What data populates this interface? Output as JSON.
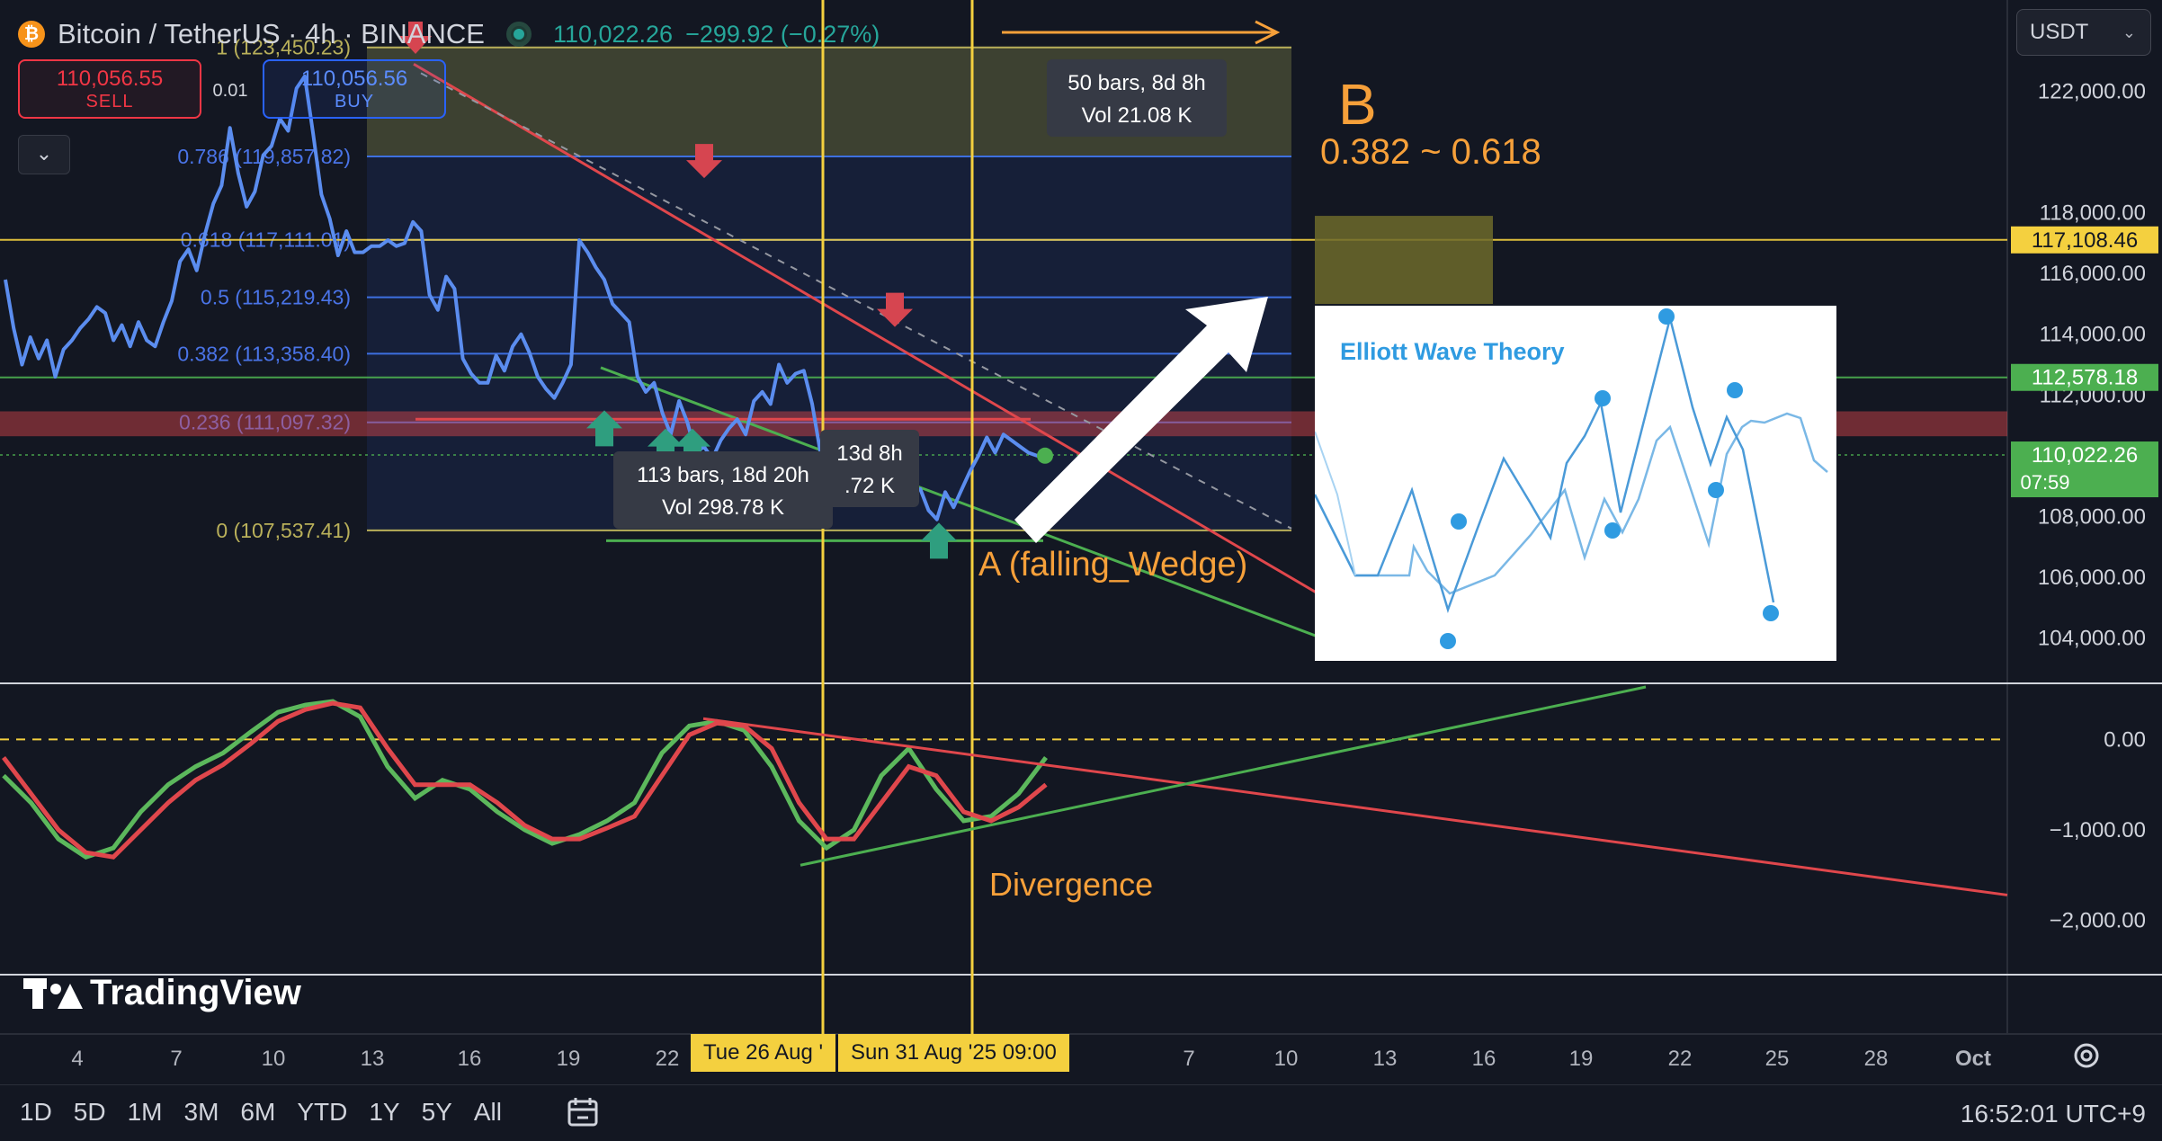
{
  "header": {
    "symbol": "Bitcoin / TetherUS · 4h · BINANCE",
    "coin_glyph": "₿",
    "last_price": "110,022.26",
    "change": "−299.92 (−0.27%)",
    "currency_select": "USDT",
    "currency_chevron": "⌄",
    "collapse_glyph": "⌄"
  },
  "trade": {
    "sell_price": "110,056.55",
    "sell_label": "SELL",
    "spread": "0.01",
    "buy_price": "110,056.56",
    "buy_label": "BUY"
  },
  "brand": "TradingView",
  "ranges": [
    "1D",
    "5D",
    "1M",
    "3M",
    "6M",
    "YTD",
    "1Y",
    "5Y",
    "All"
  ],
  "clock": "16:52:01 UTC+9",
  "colors": {
    "up": "#26a69a",
    "down": "#f23645",
    "price_line": "#5b8def",
    "fib": "#3d6fe0",
    "fib_label": "#4a74e8",
    "annotation": "#f6a03a",
    "wedge": "#4caf50",
    "trend": "#e0474c",
    "zone": "#6d6a2a",
    "cursor": "#f4d03f"
  },
  "icons": {
    "calendar": "calendar-range-icon",
    "settings": "gear-icon",
    "down_marker": "down-arrow-marker-icon",
    "up_marker": "up-arrow-marker-icon"
  },
  "chart_data": [
    {
      "type": "line",
      "name": "price-pane",
      "y_axis": {
        "ticks": [
          104000,
          106000,
          108000,
          110000,
          112000,
          114000,
          116000,
          118000,
          122000
        ],
        "tick_labels": [
          "104,000.00",
          "106,000.00",
          "108,000.00",
          "110,000.00",
          "112,000.00",
          "114,000.00",
          "116,000.00",
          "118,000.00",
          "122,000.00"
        ],
        "ylim": [
          102500,
          124300
        ]
      },
      "x_axis": {
        "tick_labels": [
          "4",
          "7",
          "10",
          "13",
          "16",
          "19",
          "22",
          "7",
          "10",
          "13",
          "16",
          "19",
          "22",
          "25",
          "28",
          "Oct"
        ],
        "crosshair_labels": [
          "Tue 26 Aug '",
          "Sun 31 Aug '25   09:00"
        ]
      },
      "price_tags": [
        {
          "label": "117,108.46",
          "value": 117108.46,
          "kind": "level"
        },
        {
          "label": "112,578.18",
          "value": 112578.18,
          "kind": "level"
        },
        {
          "label": "110,022.26",
          "value": 110022.26,
          "kind": "last",
          "countdown": "07:59"
        }
      ],
      "fibonacci": [
        {
          "ratio": "1",
          "label": "1 (123,450.23)",
          "value": 123450.23
        },
        {
          "ratio": "0.786",
          "label": "0.786 (119,857.82)",
          "value": 119857.82
        },
        {
          "ratio": "0.618",
          "label": "0.618 (117,111.01)",
          "value": 117111.01
        },
        {
          "ratio": "0.5",
          "label": "0.5 (115,219.43)",
          "value": 115219.43
        },
        {
          "ratio": "0.382",
          "label": "0.382 (113,358.40)",
          "value": 113358.4
        },
        {
          "ratio": "0.236",
          "label": "0.236 (111,097.32)",
          "value": 111097.32
        },
        {
          "ratio": "0",
          "label": "0 (107,537.41)",
          "value": 107537.41
        }
      ],
      "series": [
        {
          "name": "",
          "x": [
            0,
            2,
            4,
            6,
            8,
            10,
            12,
            14,
            16,
            18,
            20,
            22,
            24,
            26,
            28,
            30,
            32,
            34,
            36,
            38,
            40,
            42,
            44,
            46,
            48,
            50,
            52,
            54,
            56,
            58,
            60,
            62,
            64,
            66,
            68,
            70,
            72,
            74,
            76,
            78,
            80,
            82,
            84,
            86,
            88,
            90,
            92,
            94,
            96,
            98,
            100,
            102,
            104,
            106,
            108,
            110,
            112,
            114,
            116,
            118,
            120,
            122,
            124,
            126,
            128,
            130,
            132,
            134,
            136,
            138,
            140,
            142,
            144,
            146,
            148,
            150,
            152,
            154,
            156,
            158,
            160,
            162,
            164,
            166,
            168,
            170,
            172,
            174,
            176,
            178,
            180,
            182,
            184,
            186,
            188,
            190,
            192,
            194,
            196,
            198,
            200,
            202,
            204,
            206,
            208,
            210,
            212,
            214,
            216,
            218,
            220,
            222,
            224,
            226,
            228,
            230,
            232,
            234,
            236,
            238,
            240,
            242,
            244,
            246,
            248,
            250
          ],
          "values": [
            115800,
            114200,
            113000,
            113900,
            113200,
            113800,
            112600,
            113500,
            113800,
            114200,
            114500,
            114900,
            114700,
            113800,
            114300,
            113600,
            114400,
            113800,
            113600,
            114400,
            115100,
            116400,
            116800,
            116100,
            117300,
            118300,
            118900,
            120800,
            119300,
            118200,
            118700,
            119900,
            120200,
            121100,
            120700,
            122100,
            122500,
            120600,
            118600,
            117800,
            116600,
            117400,
            116700,
            116700,
            116900,
            116900,
            117100,
            116900,
            117000,
            117700,
            117400,
            115300,
            114800,
            115900,
            115500,
            113200,
            112700,
            112400,
            112400,
            113300,
            112800,
            113600,
            114000,
            113400,
            112600,
            112200,
            111900,
            112400,
            113000,
            117100,
            116700,
            116200,
            115800,
            115000,
            114700,
            114400,
            112600,
            112100,
            112400,
            111400,
            110700,
            111800,
            111100,
            110100,
            110300,
            109900,
            110500,
            110900,
            111200,
            110700,
            111800,
            112100,
            111700,
            113000,
            112400,
            112700,
            112800,
            111700,
            110100,
            108700,
            108500,
            108600,
            108800,
            108700,
            108900,
            109200,
            108700,
            109300,
            109400,
            108800,
            108900,
            108200,
            107900,
            108800,
            108300,
            108900,
            109500,
            110000,
            110600,
            110100,
            110700,
            110500,
            110300,
            110100,
            110000,
            110000
          ]
        }
      ],
      "annotations": {
        "a_label": "A (falling_Wedge)",
        "b_label": "B",
        "b_range": "0.382 ~ 0.618",
        "b_zone": [
          115000,
          117900
        ],
        "ruler_1": [
          "113 bars, 18d 20h",
          "Vol 298.78 K"
        ],
        "ruler_2": [
          "13d 8h",
          ".72 K"
        ],
        "ruler_3": [
          "50 bars, 8d 8h",
          "Vol 21.08 K"
        ],
        "inset_title": "Elliott Wave Theory"
      }
    },
    {
      "type": "line",
      "name": "oscillator-pane",
      "y_axis": {
        "ticks": [
          0,
          -1000,
          -2000
        ],
        "tick_labels": [
          "0.00",
          "−1,000.00",
          "−2,000.00"
        ],
        "ylim": [
          -2600,
          600
        ]
      },
      "annotation": "Divergence",
      "series": [
        {
          "name": "",
          "color": "green",
          "values": [
            -400,
            -700,
            -1100,
            -1300,
            -1200,
            -800,
            -500,
            -300,
            -150,
            80,
            300,
            380,
            420,
            250,
            -300,
            -650,
            -450,
            -550,
            -800,
            -1000,
            -1150,
            -1050,
            -900,
            -700,
            -150,
            150,
            200,
            100,
            -300,
            -900,
            -1200,
            -1000,
            -400,
            -100,
            -550,
            -900,
            -850,
            -600,
            -200
          ]
        },
        {
          "name": "",
          "color": "red",
          "values": [
            -200,
            -600,
            -1000,
            -1250,
            -1300,
            -1000,
            -700,
            -450,
            -280,
            -50,
            200,
            330,
            400,
            350,
            -100,
            -500,
            -500,
            -500,
            -700,
            -950,
            -1100,
            -1100,
            -980,
            -850,
            -400,
            50,
            180,
            150,
            -100,
            -700,
            -1100,
            -1100,
            -700,
            -300,
            -400,
            -800,
            -900,
            -750,
            -500
          ]
        }
      ]
    }
  ]
}
